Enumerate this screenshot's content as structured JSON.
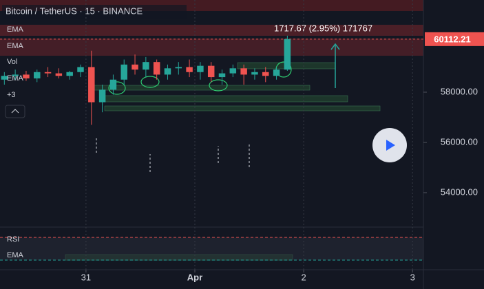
{
  "chart_data": {
    "type": "candlestick",
    "title": "Bitcoin / TetherUS · 15 · BINANCE",
    "indicators": [
      "EMA",
      "EMA",
      "Vol",
      "EMA",
      "+3"
    ],
    "rsi_labels": [
      "RSI",
      "EMA"
    ],
    "annotation": "1717.67 (2.95%) 171767",
    "last_price": 60112.21,
    "x": [
      30.25,
      30.35,
      30.45,
      30.55,
      30.65,
      30.75,
      30.85,
      30.95,
      31.05,
      31.15,
      31.25,
      31.35,
      31.45,
      31.55,
      31.65,
      31.75,
      31.85,
      31.95,
      32.05,
      32.15,
      32.25,
      32.35,
      32.45,
      32.55,
      32.65,
      32.75,
      32.85
    ],
    "open": [
      58500,
      58650,
      58700,
      58550,
      58800,
      58750,
      58650,
      58800,
      59000,
      57600,
      58100,
      58500,
      59100,
      58900,
      59200,
      58700,
      58950,
      59000,
      58800,
      59050,
      58600,
      58750,
      58950,
      58700,
      58800,
      58650,
      58900
    ],
    "high": [
      58800,
      58900,
      58850,
      58900,
      59000,
      58950,
      58850,
      59100,
      59650,
      58300,
      58700,
      59300,
      59500,
      59400,
      59300,
      59100,
      59200,
      59300,
      59200,
      59200,
      58900,
      59100,
      59100,
      58950,
      59000,
      59000,
      60250
    ],
    "low": [
      58300,
      58500,
      58450,
      58400,
      58600,
      58550,
      58500,
      58600,
      56700,
      57200,
      57900,
      58300,
      58700,
      58600,
      58500,
      58500,
      58700,
      58600,
      58500,
      58400,
      58300,
      58600,
      58300,
      58500,
      58400,
      58500,
      58850
    ],
    "close": [
      58650,
      58700,
      58550,
      58800,
      58750,
      58650,
      58800,
      59000,
      57600,
      58100,
      58500,
      59100,
      58900,
      59200,
      58700,
      58950,
      59000,
      58800,
      59050,
      58600,
      58750,
      58950,
      58700,
      58800,
      58650,
      58900,
      60112
    ],
    "up_color": "#26a69a",
    "down_color": "#ef5350",
    "xlim": [
      30.21,
      34.1
    ],
    "xticks": [
      {
        "value": 31,
        "label": "31"
      },
      {
        "value": 32,
        "label": "Apr"
      },
      {
        "value": 33,
        "label": "2"
      },
      {
        "value": 34,
        "label": "3"
      }
    ],
    "ylim": [
      52630,
      61670
    ],
    "yticks": [
      {
        "value": 58000,
        "label": "58000.00"
      },
      {
        "value": 56000,
        "label": "56000.00"
      },
      {
        "value": 54000,
        "label": "54000.00"
      }
    ]
  }
}
